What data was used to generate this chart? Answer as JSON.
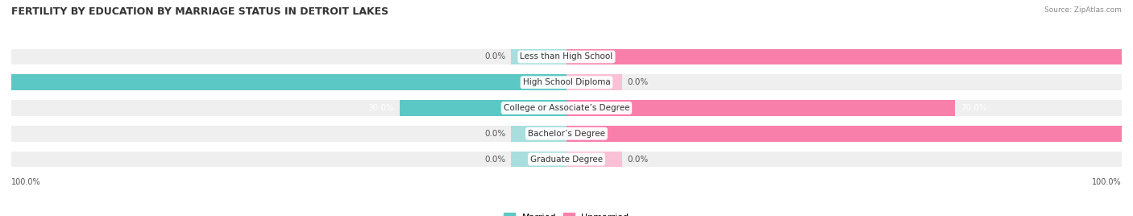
{
  "title": "FERTILITY BY EDUCATION BY MARRIAGE STATUS IN DETROIT LAKES",
  "source": "Source: ZipAtlas.com",
  "categories": [
    "Less than High School",
    "High School Diploma",
    "College or Associate’s Degree",
    "Bachelor’s Degree",
    "Graduate Degree"
  ],
  "married": [
    0.0,
    100.0,
    30.0,
    0.0,
    0.0
  ],
  "unmarried": [
    100.0,
    0.0,
    70.0,
    100.0,
    0.0
  ],
  "married_color": "#5BC8C5",
  "unmarried_color": "#F97FAB",
  "married_stub_color": "#A8DEDE",
  "unmarried_stub_color": "#FAC0D5",
  "bar_bg_color": "#EFEFEF",
  "fig_bg_color": "#FFFFFF",
  "stub_size": 10,
  "title_fontsize": 9,
  "label_fontsize": 7.5,
  "val_fontsize": 7.5,
  "bar_height": 0.62
}
